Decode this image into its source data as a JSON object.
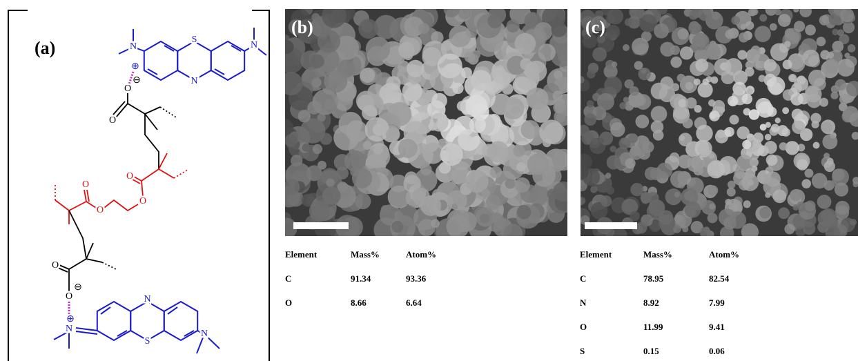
{
  "panel_a": {
    "label": "(a)",
    "atoms": [
      "N",
      "S",
      "N",
      "N",
      "⊕",
      "⊖",
      "O",
      "O",
      "O",
      "O",
      "O",
      "O",
      "O",
      "O",
      "⊖",
      "⊕",
      "N",
      "N",
      "S",
      "N"
    ]
  },
  "panel_b": {
    "label": "(b)",
    "table": {
      "header": [
        "Element",
        "Mass%",
        "Atom%"
      ],
      "rows": [
        [
          "C",
          "91.34",
          "93.36"
        ],
        [
          "O",
          "8.66",
          "6.64"
        ]
      ]
    }
  },
  "panel_c": {
    "label": "(c)",
    "table": {
      "header": [
        "Element",
        "Mass%",
        "Atom%"
      ],
      "rows": [
        [
          "C",
          "78.95",
          "82.54"
        ],
        [
          "N",
          "8.92",
          "7.99"
        ],
        [
          "O",
          "11.99",
          "9.41"
        ],
        [
          "S",
          "0.15",
          "0.06"
        ]
      ]
    }
  }
}
